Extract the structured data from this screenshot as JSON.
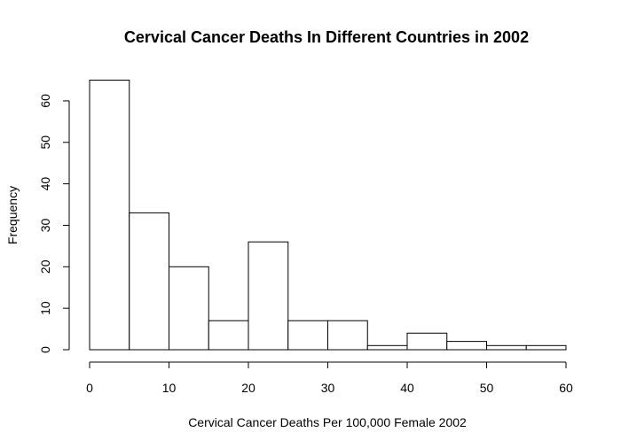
{
  "chart_data": {
    "type": "bar",
    "title": "Cervical Cancer Deaths In Different Countries in 2002",
    "xlabel": "Cervical Cancer Deaths Per 100,000 Female 2002",
    "ylabel": "Frequency",
    "bins": [
      {
        "from": 0,
        "to": 5,
        "count": 65
      },
      {
        "from": 5,
        "to": 10,
        "count": 33
      },
      {
        "from": 10,
        "to": 15,
        "count": 20
      },
      {
        "from": 15,
        "to": 20,
        "count": 7
      },
      {
        "from": 20,
        "to": 25,
        "count": 26
      },
      {
        "from": 25,
        "to": 30,
        "count": 7
      },
      {
        "from": 30,
        "to": 35,
        "count": 7
      },
      {
        "from": 35,
        "to": 40,
        "count": 1
      },
      {
        "from": 40,
        "to": 45,
        "count": 4
      },
      {
        "from": 45,
        "to": 50,
        "count": 2
      },
      {
        "from": 50,
        "to": 55,
        "count": 1
      },
      {
        "from": 55,
        "to": 60,
        "count": 1
      }
    ],
    "x_ticks": [
      "0",
      "10",
      "20",
      "30",
      "40",
      "50",
      "60"
    ],
    "y_ticks": [
      "0",
      "10",
      "20",
      "30",
      "40",
      "50",
      "60"
    ],
    "xlim": [
      0,
      60
    ],
    "ylim": [
      0,
      65
    ],
    "grid": false
  }
}
